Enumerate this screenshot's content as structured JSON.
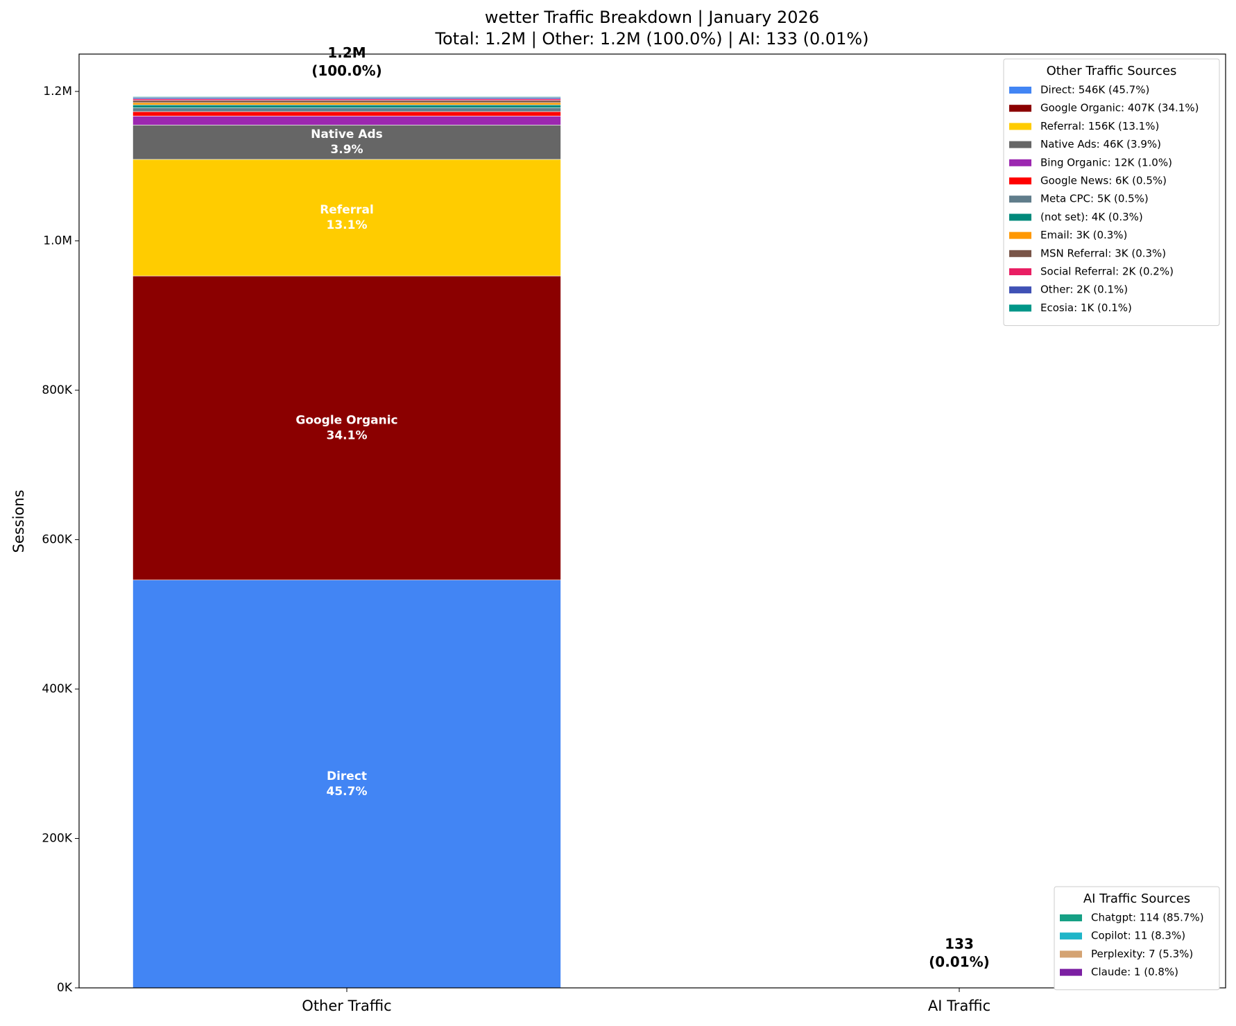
{
  "chart_data": {
    "type": "stacked_bar",
    "title": "wetter Traffic Breakdown | January 2026",
    "subtitle": "Total: 1.2M | Other: 1.2M (100.0%) | AI: 133 (0.01%)",
    "y_label": "Sessions",
    "categories": [
      "Other Traffic",
      "AI Traffic"
    ],
    "total_labels": [
      "1.2M",
      "133"
    ],
    "total_share_labels": [
      "(100.0%)",
      "(0.01%)"
    ],
    "ylim": [
      0,
      1250000
    ],
    "yticks": [
      {
        "value": 0,
        "label": "0K"
      },
      {
        "value": 200000,
        "label": "200K"
      },
      {
        "value": 400000,
        "label": "400K"
      },
      {
        "value": 600000,
        "label": "600K"
      },
      {
        "value": 800000,
        "label": "800K"
      },
      {
        "value": 1000000,
        "label": "1.0M"
      },
      {
        "value": 1200000,
        "label": "1.2M"
      }
    ],
    "other_legend_title": "Other Traffic Sources",
    "other_series": [
      {
        "name": "Direct",
        "color": "#4285f4",
        "values": [
          546000,
          null
        ],
        "legend_label": "Direct: 546K (45.7%)",
        "share_label": "45.7%"
      },
      {
        "name": "Google Organic",
        "color": "#8b0000",
        "values": [
          407000,
          null
        ],
        "legend_label": "Google Organic: 407K (34.1%)",
        "share_label": "34.1%"
      },
      {
        "name": "Referral",
        "color": "#ffcc00",
        "values": [
          156000,
          null
        ],
        "legend_label": "Referral: 156K (13.1%)",
        "share_label": "13.1%"
      },
      {
        "name": "Native Ads",
        "color": "#666666",
        "values": [
          46000,
          null
        ],
        "legend_label": "Native Ads: 46K (3.9%)",
        "share_label": "3.9%"
      },
      {
        "name": "Bing Organic",
        "color": "#9c27b0",
        "values": [
          12000,
          null
        ],
        "legend_label": "Bing Organic: 12K (1.0%)"
      },
      {
        "name": "Google News",
        "color": "#ff0000",
        "values": [
          6000,
          null
        ],
        "legend_label": "Google News: 6K (0.5%)"
      },
      {
        "name": "Meta CPC",
        "color": "#607d8b",
        "values": [
          5000,
          null
        ],
        "legend_label": "Meta CPC: 5K (0.5%)"
      },
      {
        "name": "(not set)",
        "color": "#00897b",
        "values": [
          4000,
          null
        ],
        "legend_label": "(not set): 4K (0.3%)"
      },
      {
        "name": "Email",
        "color": "#ff9800",
        "values": [
          3000,
          null
        ],
        "legend_label": "Email: 3K (0.3%)"
      },
      {
        "name": "MSN Referral",
        "color": "#795548",
        "values": [
          3000,
          null
        ],
        "legend_label": "MSN Referral: 3K (0.3%)"
      },
      {
        "name": "Social Referral",
        "color": "#e91e63",
        "values": [
          2000,
          null
        ],
        "legend_label": "Social Referral: 2K (0.2%)"
      },
      {
        "name": "Other",
        "color": "#3f51b5",
        "values": [
          2000,
          null
        ],
        "legend_label": "Other: 2K (0.1%)"
      },
      {
        "name": "Ecosia",
        "color": "#009688",
        "values": [
          1000,
          null
        ],
        "legend_label": "Ecosia: 1K (0.1%)"
      }
    ],
    "ai_legend_title": "AI Traffic Sources",
    "ai_series": [
      {
        "name": "Chatgpt",
        "color": "#16a085",
        "values": [
          null,
          114
        ],
        "legend_label": "Chatgpt: 114 (85.7%)"
      },
      {
        "name": "Copilot",
        "color": "#1fb5c8",
        "values": [
          null,
          11
        ],
        "legend_label": "Copilot: 11 (8.3%)"
      },
      {
        "name": "Perplexity",
        "color": "#d4a373",
        "values": [
          null,
          7
        ],
        "legend_label": "Perplexity: 7 (5.3%)"
      },
      {
        "name": "Claude",
        "color": "#7b1fa2",
        "values": [
          null,
          1
        ],
        "legend_label": "Claude: 1 (0.8%)"
      }
    ]
  }
}
